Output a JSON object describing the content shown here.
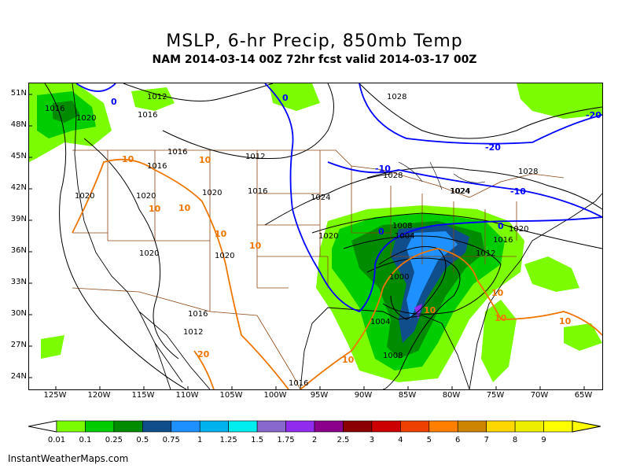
{
  "header": {
    "title": "MSLP, 6-hr Precip, 850mb Temp",
    "subtitle": "NAM 2014-03-14 00Z 72hr fcst valid 2014-03-17 00Z"
  },
  "axes": {
    "lat_labels": [
      "51N",
      "48N",
      "45N",
      "42N",
      "39N",
      "36N",
      "33N",
      "30N",
      "27N",
      "24N"
    ],
    "lon_labels": [
      "125W",
      "120W",
      "115W",
      "110W",
      "105W",
      "100W",
      "95W",
      "90W",
      "85W",
      "80W",
      "75W",
      "70W",
      "65W"
    ]
  },
  "isobars": [
    "1016",
    "1020",
    "1012",
    "1016",
    "1016",
    "1028",
    "1028",
    "1012",
    "1016",
    "1020",
    "1020",
    "1020",
    "1016",
    "1024",
    "1024",
    "1028",
    "1020",
    "1004",
    "1008",
    "1016",
    "1012",
    "1020",
    "1000",
    "1020",
    "1020",
    "1016",
    "1012",
    "1004",
    "1008",
    "1016",
    "1024"
  ],
  "isotherms": [
    "0",
    "0",
    "-20",
    "-20",
    "-10",
    "-10",
    "0",
    "0",
    "10",
    "10",
    "10",
    "10",
    "10",
    "20",
    "10",
    "10",
    "10",
    "10",
    "10",
    "10"
  ],
  "colorbar": {
    "labels": [
      "0.01",
      "0.1",
      "0.25",
      "0.5",
      "0.75",
      "1",
      "1.25",
      "1.5",
      "1.75",
      "2",
      "2.5",
      "3",
      "4",
      "5",
      "6",
      "7",
      "8",
      "9"
    ],
    "colors": [
      "#7cfc00",
      "#00cd00",
      "#008b00",
      "#104e8b",
      "#1e90ff",
      "#00b2ee",
      "#00eeee",
      "#8968cd",
      "#912cee",
      "#8b008b",
      "#8b0000",
      "#cd0000",
      "#ee4000",
      "#ff7f00",
      "#cd8500",
      "#ffd700",
      "#eeee00",
      "#ffff00"
    ]
  },
  "credit": "InstantWeatherMaps.com"
}
